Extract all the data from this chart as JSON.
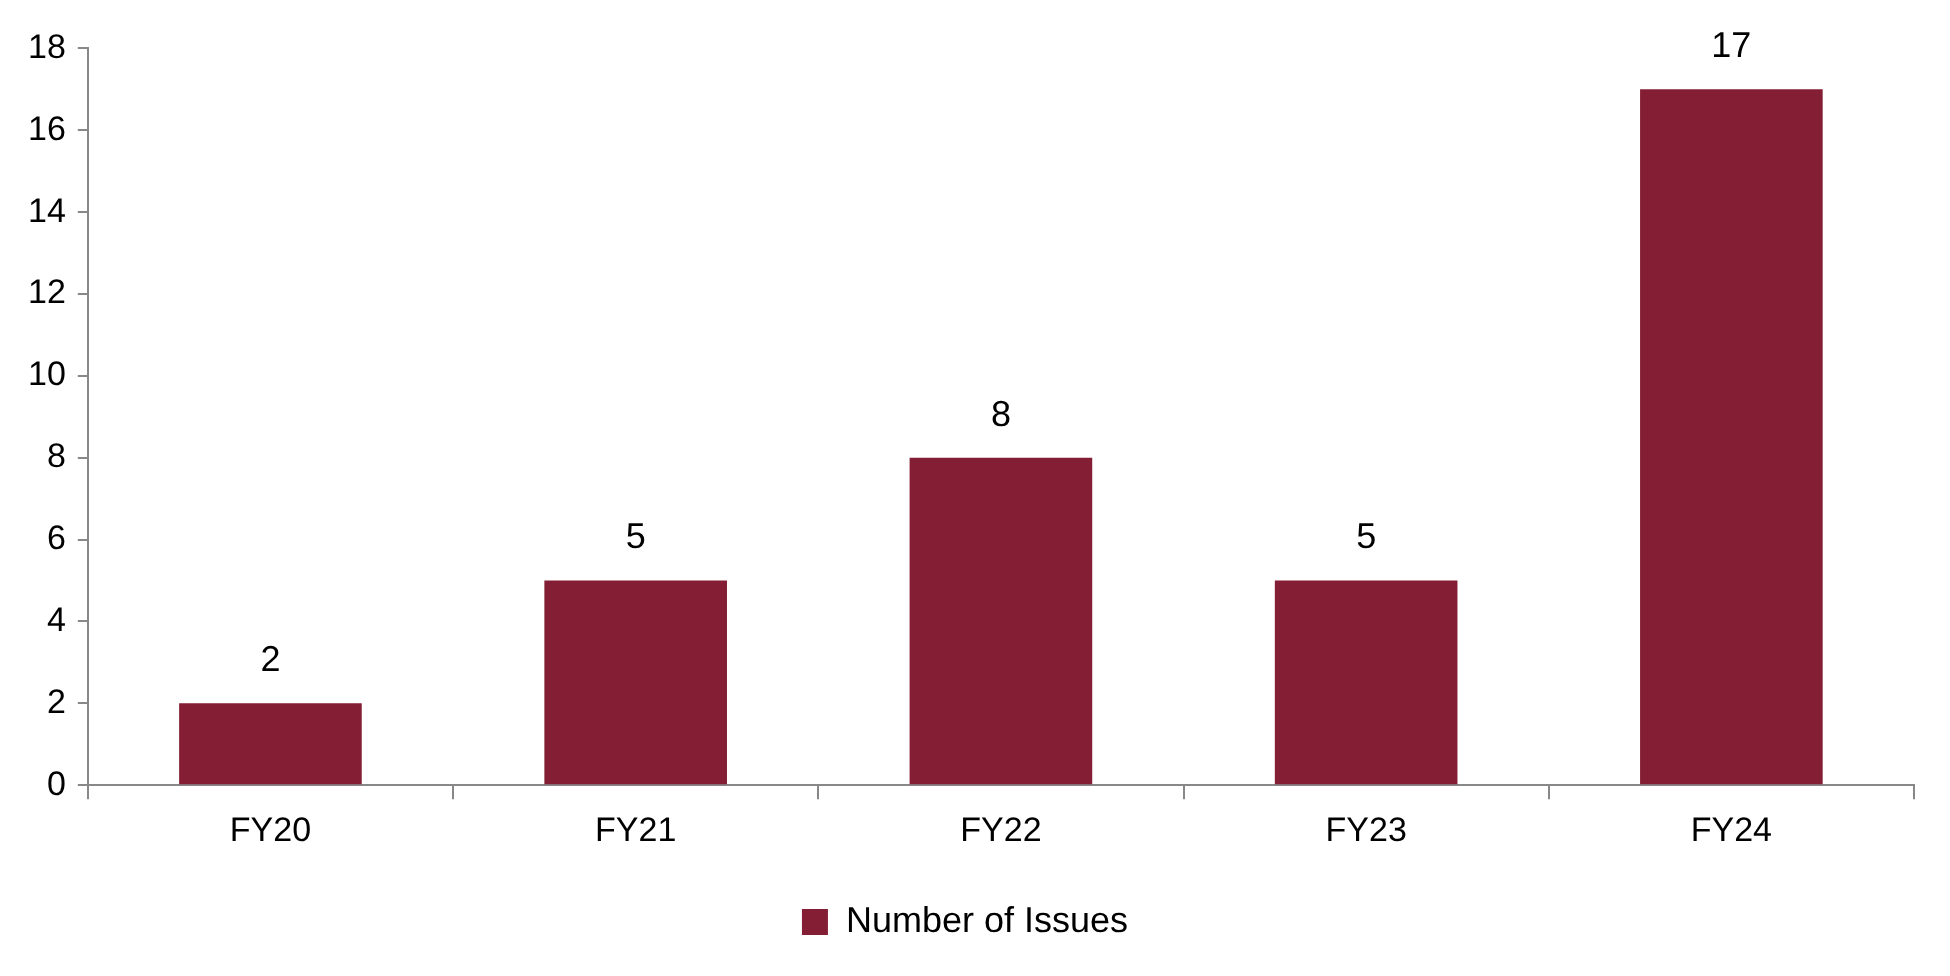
{
  "chart_data": {
    "type": "bar",
    "categories": [
      "FY20",
      "FY21",
      "FY22",
      "FY23",
      "FY24"
    ],
    "series": [
      {
        "name": "Number of Issues",
        "color": "#841e35",
        "values": [
          2,
          5,
          8,
          5,
          17
        ]
      }
    ],
    "ylim": [
      0,
      18
    ],
    "yticks": [
      0,
      2,
      4,
      6,
      8,
      10,
      12,
      14,
      16,
      18
    ],
    "grid": false,
    "legend": "bottom",
    "data_labels": true
  }
}
